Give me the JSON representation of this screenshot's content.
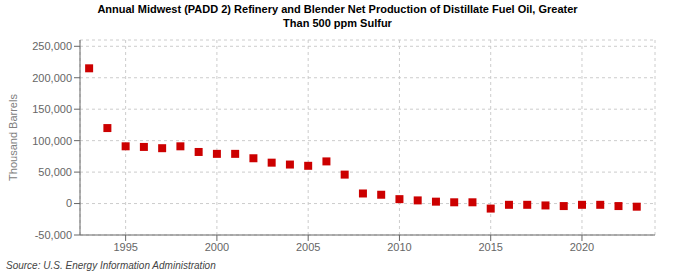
{
  "chart_data": {
    "type": "scatter",
    "title": "Annual Midwest (PADD 2) Refinery and Blender Net Production of Distillate Fuel Oil, Greater\nThan 500 ppm Sulfur",
    "ylabel": "Thousand Barrels",
    "annotations": [
      "Source: U.S. Energy Information Administration"
    ],
    "x": [
      1993,
      1994,
      1995,
      1996,
      1997,
      1998,
      1999,
      2000,
      2001,
      2002,
      2003,
      2004,
      2005,
      2006,
      2007,
      2008,
      2009,
      2010,
      2011,
      2012,
      2013,
      2014,
      2015,
      2016,
      2017,
      2018,
      2019,
      2020,
      2021,
      2022,
      2023
    ],
    "values": [
      215000,
      120000,
      91000,
      90000,
      88000,
      91000,
      82000,
      79000,
      79000,
      72000,
      65000,
      62000,
      60000,
      67000,
      46000,
      16000,
      14000,
      7000,
      5000,
      3000,
      2000,
      2000,
      -8000,
      -2000,
      -2000,
      -3000,
      -4000,
      -2000,
      -2000,
      -4000,
      -5000
    ],
    "color": "#cc0000",
    "marker": "square",
    "xlim": [
      1992.5,
      2024
    ],
    "xticks": [
      1995,
      2000,
      2005,
      2010,
      2015,
      2020
    ],
    "ylim": [
      -50000,
      260000
    ],
    "yticks": [
      {
        "value": -50000,
        "label": "-50,000"
      },
      0,
      {
        "value": 50000,
        "label": "50,000"
      },
      {
        "value": 100000,
        "label": "100,000"
      },
      {
        "value": 150000,
        "label": "150,000"
      },
      {
        "value": 200000,
        "label": "200,000"
      },
      {
        "value": 250000,
        "label": "250,000"
      }
    ],
    "grid": true
  }
}
